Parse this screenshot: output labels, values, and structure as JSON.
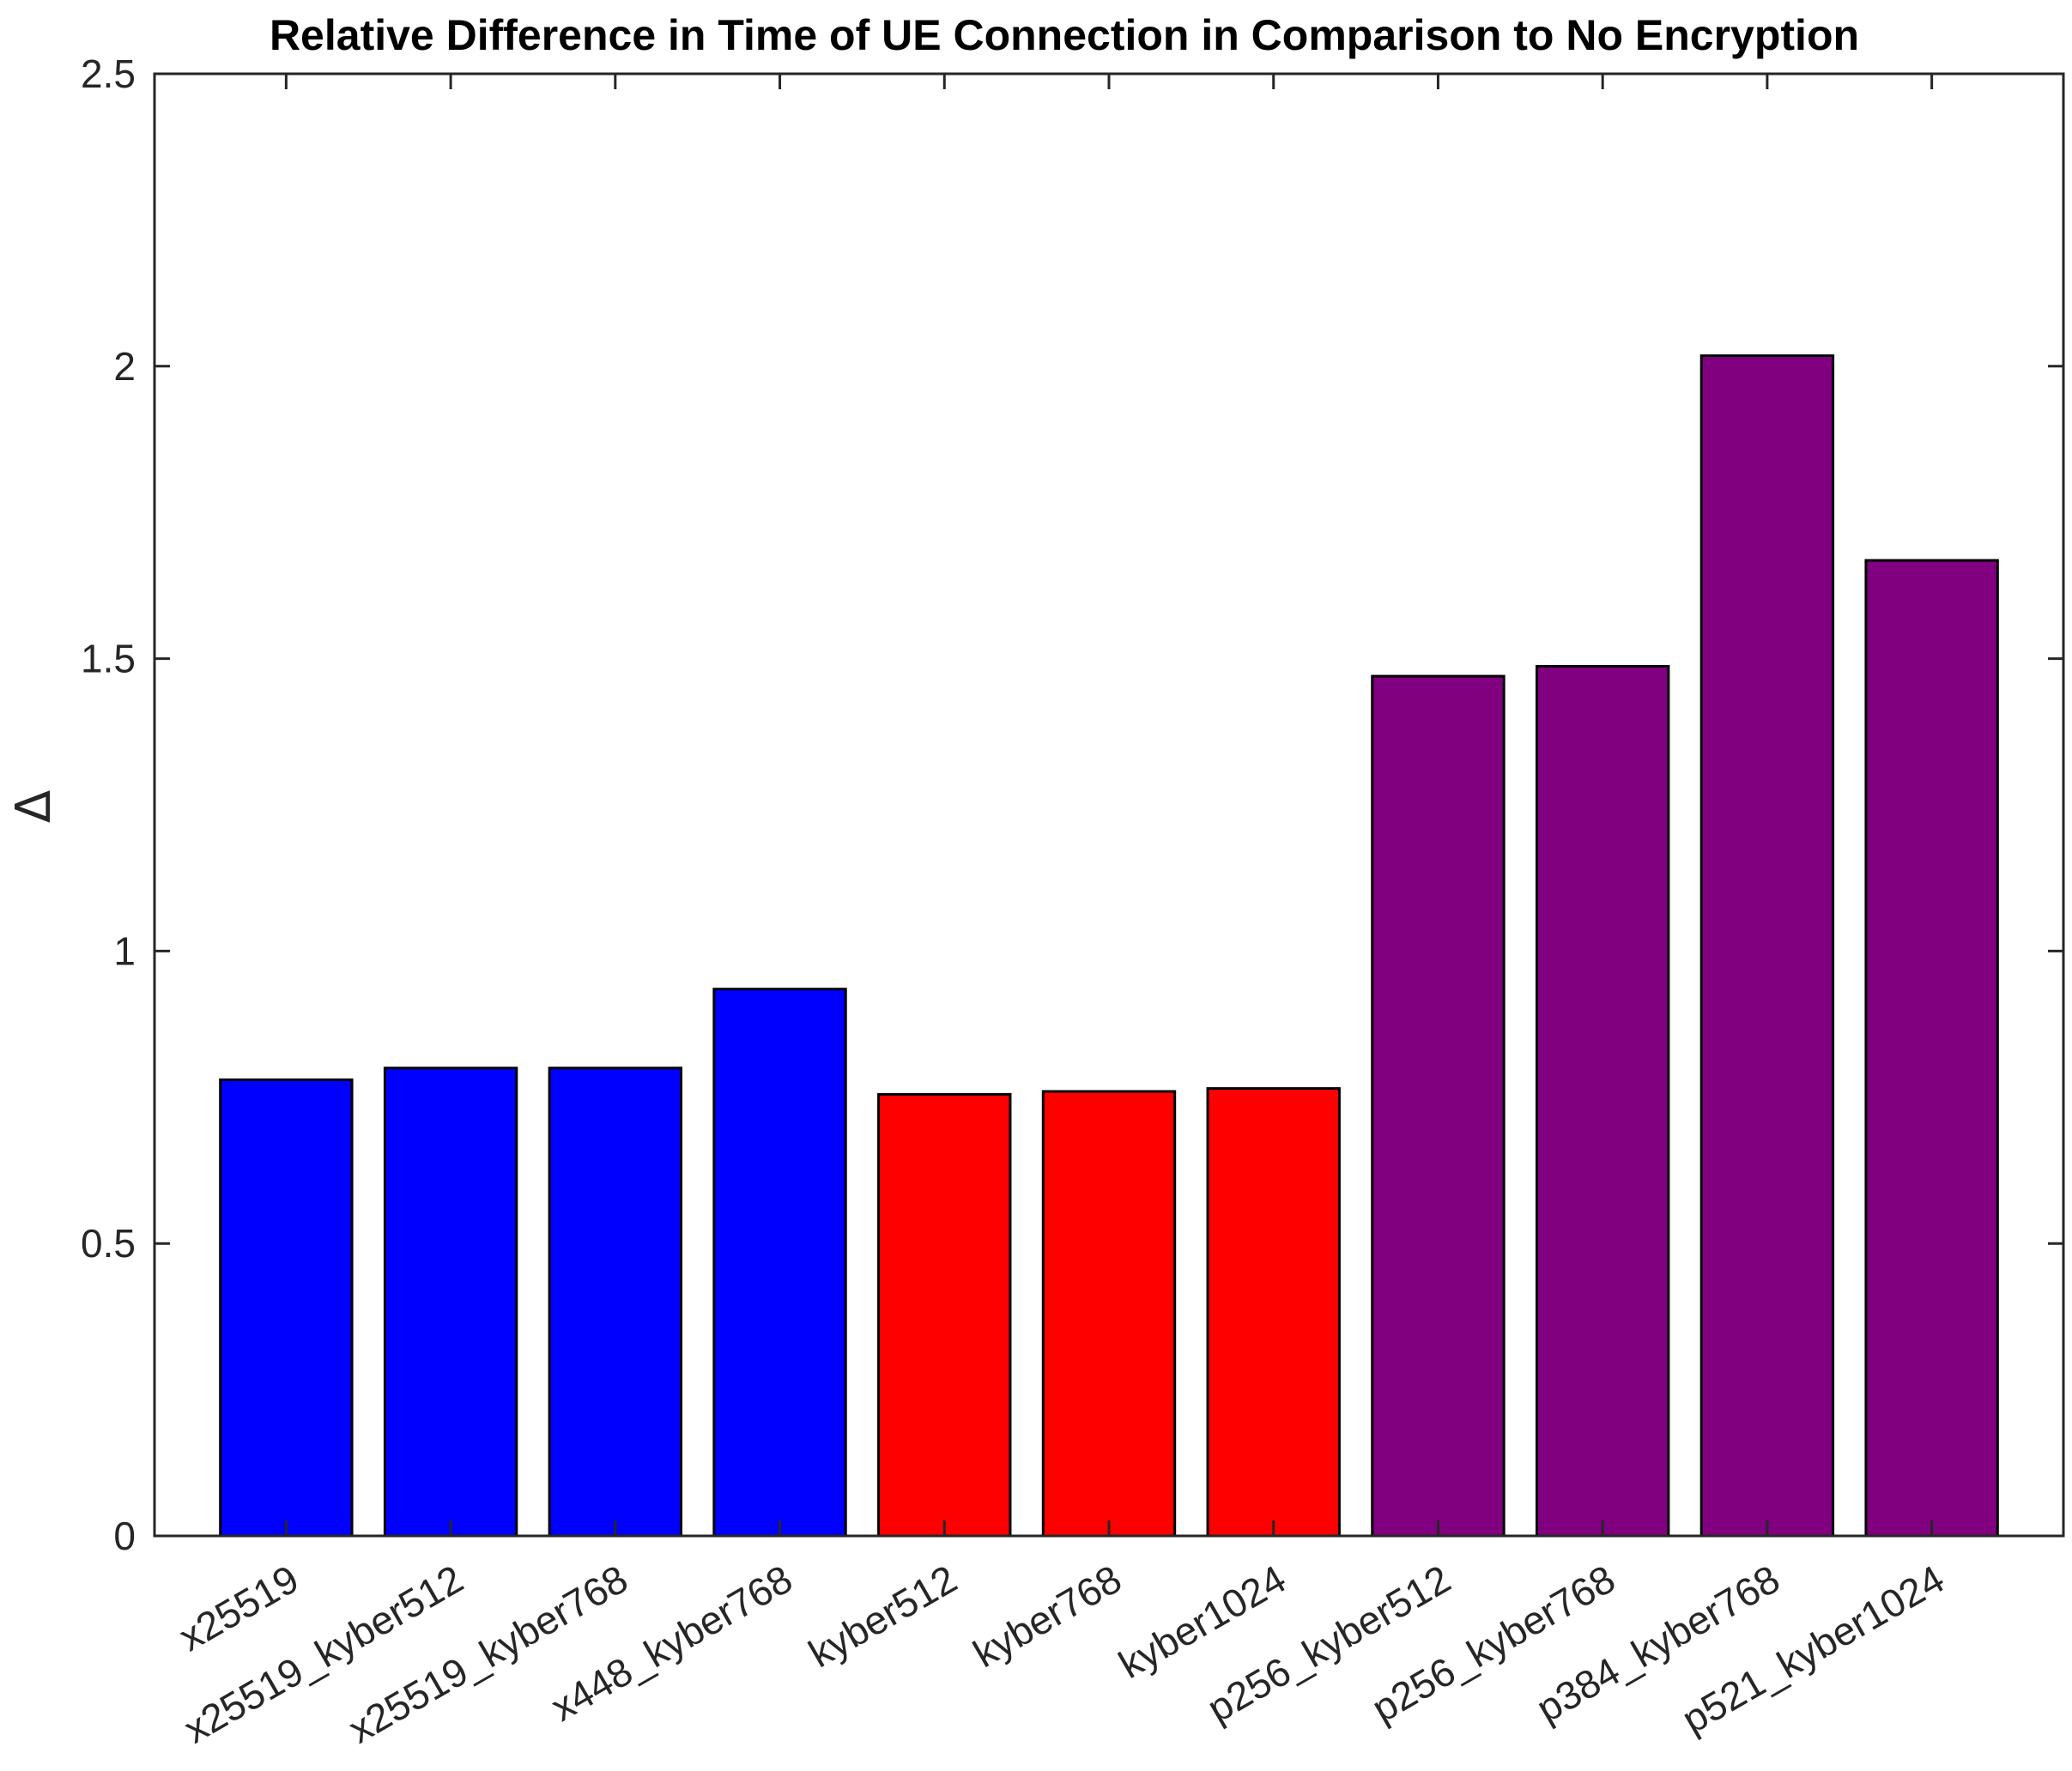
{
  "chart_data": {
    "type": "bar",
    "title": "Relative Difference in Time of UE Connection in Comparison to No Encryption",
    "xlabel": "",
    "ylabel": "Δ",
    "ylim": [
      0,
      2.5
    ],
    "yticks": [
      0,
      0.5,
      1,
      1.5,
      2,
      2.5
    ],
    "ytick_labels": [
      "0",
      "0.5",
      "1",
      "1.5",
      "2",
      "2.5"
    ],
    "categories": [
      "x25519",
      "x25519_kyber512",
      "x25519_kyber768",
      "x448_kyber768",
      "kyber512",
      "kyber768",
      "kyber1024",
      "p256_kyber512",
      "p256_kyber768",
      "p384_kyber768",
      "p521_kyber1024"
    ],
    "values": [
      0.78,
      0.8,
      0.8,
      0.935,
      0.755,
      0.76,
      0.765,
      1.47,
      1.487,
      2.018,
      1.668
    ],
    "bar_colors": [
      "#0000ff",
      "#0000ff",
      "#0000ff",
      "#0000ff",
      "#ff0000",
      "#ff0000",
      "#ff0000",
      "#800080",
      "#800080",
      "#800080",
      "#800080"
    ],
    "grid": false,
    "legend": null
  }
}
